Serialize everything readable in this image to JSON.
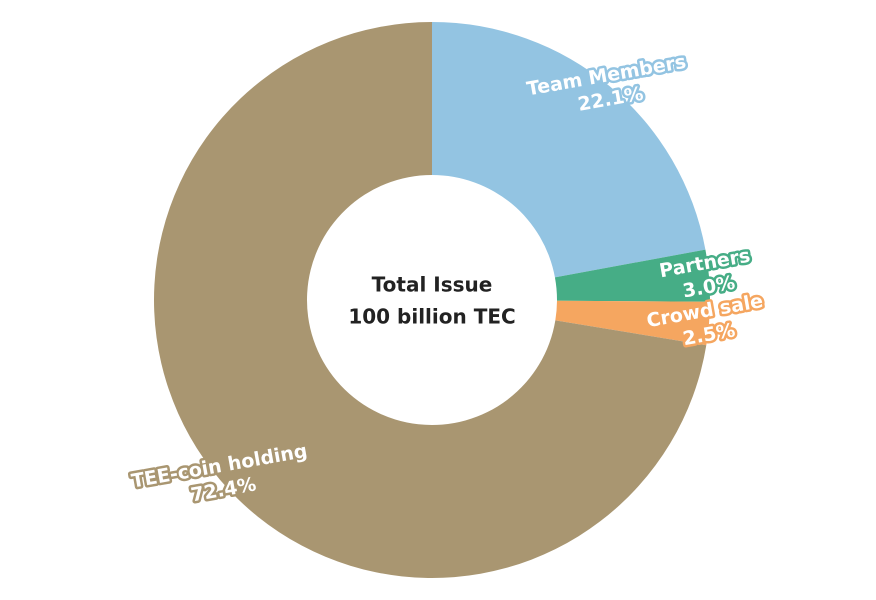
{
  "chart_data": {
    "type": "donut",
    "center_text": [
      "Total Issue",
      "100 billion TEC"
    ],
    "categories": [
      "Team Members",
      "Partners",
      "Crowd sale",
      "TEE-coin holding"
    ],
    "values": [
      22.1,
      3.0,
      2.5,
      72.4
    ],
    "value_labels": [
      "22.1%",
      "3.0%",
      "2.5%",
      "72.4%"
    ],
    "colors": [
      "#93c4e2",
      "#46ad86",
      "#f5a660",
      "#a99671"
    ]
  }
}
